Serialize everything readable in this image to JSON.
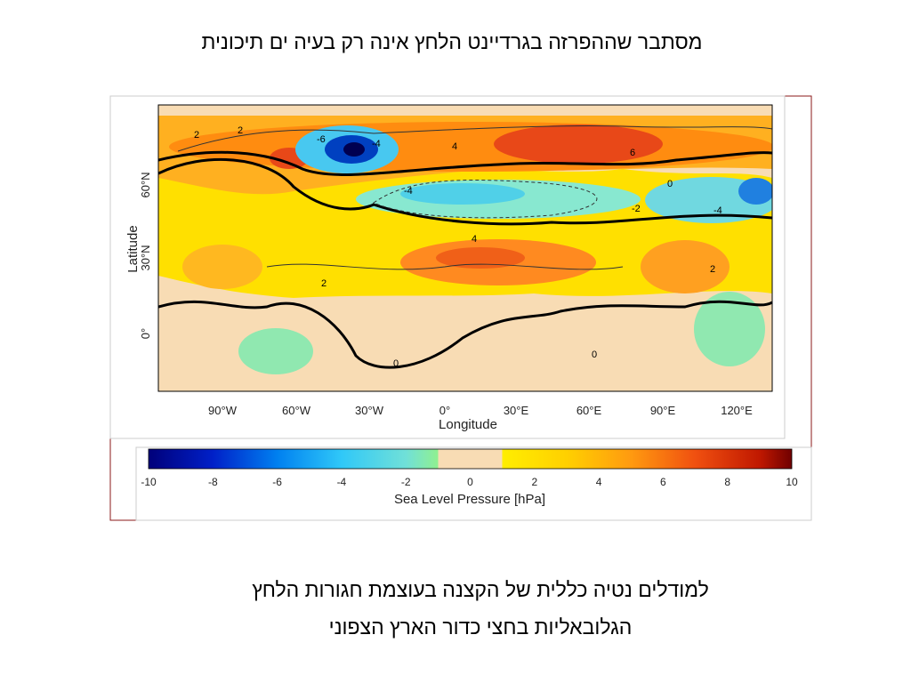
{
  "header": {
    "title": "מסתבר שההפרזה בגרדיינט הלחץ אינה רק בעיה ים תיכונית"
  },
  "figure": {
    "y_axis_label": "Latitude",
    "x_axis_label": "Longitude",
    "x_ticks": [
      "90°W",
      "60°W",
      "30°W",
      "0°",
      "30°E",
      "60°E",
      "90°E",
      "120°E"
    ],
    "y_ticks": [
      "60°N",
      "30°N",
      "0°"
    ],
    "contour_labels": [
      "2",
      "2",
      "-6",
      "-4",
      "4",
      "6",
      "0",
      "-4",
      "-2",
      "-4",
      "4",
      "2",
      "2",
      "0",
      "0"
    ],
    "colorbar": {
      "ticks": [
        "-10",
        "-8",
        "-6",
        "-4",
        "-2",
        "0",
        "2",
        "4",
        "6",
        "8",
        "10"
      ],
      "label": "Sea Level Pressure [hPa]"
    }
  },
  "caption": {
    "lines": [
      "למודלים נטיה כללית של הקצנה בעוצמת חגורות הלחץ",
      "הגלובאליות בחצי כדור הארץ הצפוני"
    ]
  }
}
